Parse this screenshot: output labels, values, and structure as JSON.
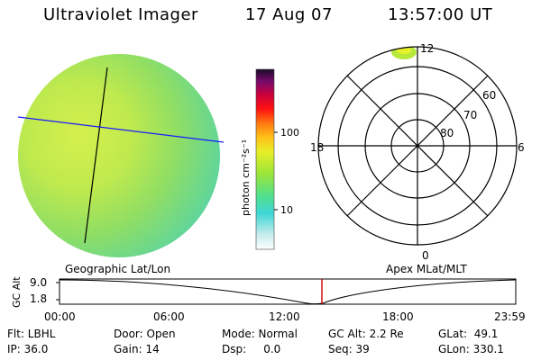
{
  "header": {
    "instrument": "Ultraviolet Imager",
    "date": "17 Aug 07",
    "time": "13:57:00 UT"
  },
  "colorbar": {
    "label": "photon cm⁻²s⁻¹",
    "tick_100": "100",
    "tick_10": "10"
  },
  "polar": {
    "labels": {
      "top": "12",
      "bottom": "0",
      "left": "18",
      "right": "6"
    },
    "lat_labels": [
      "60",
      "70",
      "80"
    ]
  },
  "timeline": {
    "left_title": "Geographic Lat/Lon",
    "right_title": "Apex MLat/MLT",
    "ylabel": "GC Alt",
    "y_top": "9.0",
    "y_bottom": "1.8",
    "xticks": [
      "00:00",
      "06:00",
      "12:00",
      "18:00",
      "23:59"
    ],
    "marker_color": "#cc0000"
  },
  "info": {
    "flt": "Flt: LBHL",
    "ip": "IP: 36.0",
    "door": "Door: Open",
    "gain": "Gain: 14",
    "mode": "Mode: Normal",
    "dsp": "Dsp:     0.0",
    "gcalt": "GC Alt: 2.2 Re",
    "seq": "Seq: 39",
    "glat": "GLat:  49.1",
    "glon": "GLon: 330.1"
  }
}
